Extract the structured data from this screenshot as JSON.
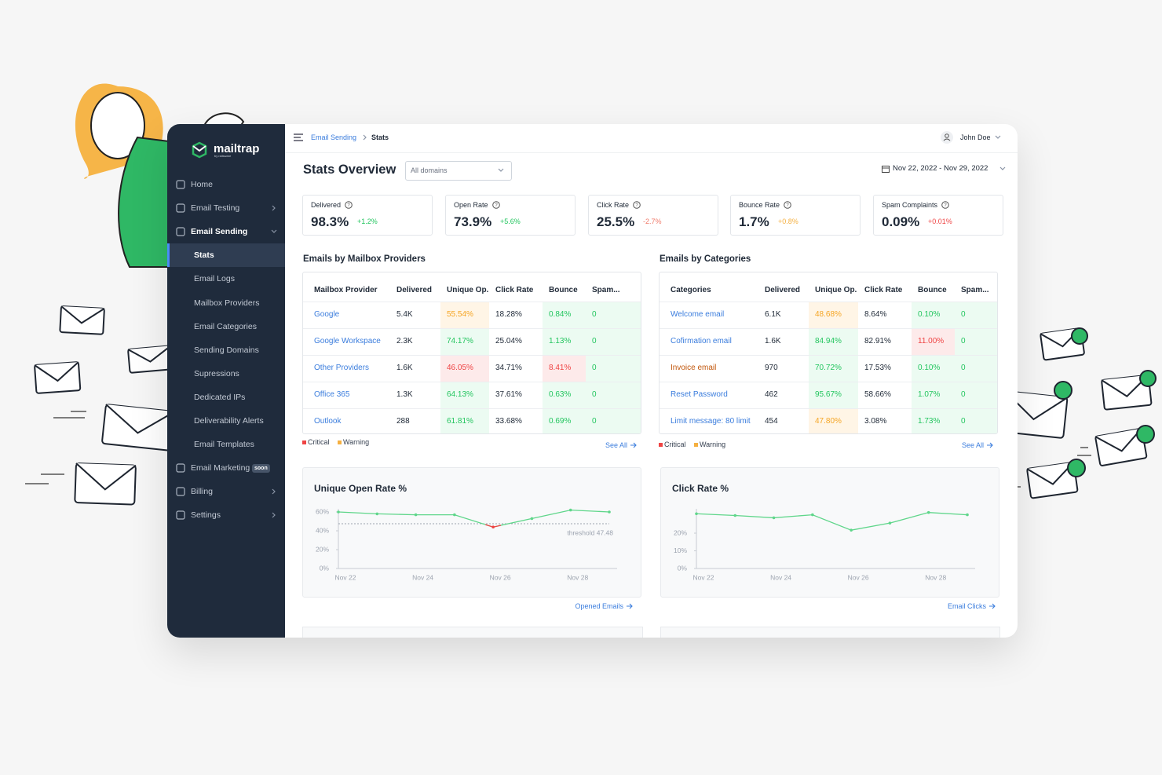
{
  "sidebar": {
    "brand": "mailtrap",
    "brand_sub": "by railsware",
    "nav": [
      {
        "label": "Home"
      },
      {
        "label": "Email Testing",
        "chevron": "right"
      },
      {
        "label": "Email Sending",
        "chevron": "down",
        "open": true
      },
      {
        "label": "Stats",
        "sub": true,
        "active": true
      },
      {
        "label": "Email Logs",
        "sub": true
      },
      {
        "label": "Mailbox Providers",
        "sub": true
      },
      {
        "label": "Email Categories",
        "sub": true
      },
      {
        "label": "Sending Domains",
        "sub": true
      },
      {
        "label": "Supressions",
        "sub": true
      },
      {
        "label": "Dedicated IPs",
        "sub": true
      },
      {
        "label": "Deliverability Alerts",
        "sub": true
      },
      {
        "label": "Email Templates",
        "sub": true
      },
      {
        "label": "Email Marketing",
        "badge": "soon"
      },
      {
        "label": "Billing",
        "chevron": "right"
      },
      {
        "label": "Settings",
        "chevron": "right"
      }
    ]
  },
  "topbar": {
    "breadcrumb": [
      "Email Sending",
      "Stats"
    ],
    "user": "John Doe"
  },
  "header": {
    "title": "Stats Overview",
    "domain_select": "All domains",
    "date_range": "Nov 22, 2022 - Nov 29, 2022"
  },
  "kpis": [
    {
      "label": "Delivered",
      "value": "98.3%",
      "delta": "+1.2%",
      "delta_color": "#22c55e"
    },
    {
      "label": "Open Rate",
      "value": "73.9%",
      "delta": "+5.6%",
      "delta_color": "#22c55e"
    },
    {
      "label": "Click Rate",
      "value": "25.5%",
      "delta": "-2.7%",
      "delta_color": "#f07a6a"
    },
    {
      "label": "Bounce Rate",
      "value": "1.7%",
      "delta": "+0.8%",
      "delta_color": "#f5b041"
    },
    {
      "label": "Spam Complaints",
      "value": "0.09%",
      "delta": "+0.01%",
      "delta_color": "#ef4444"
    }
  ],
  "tables": [
    {
      "title": "Emails by Mailbox Providers",
      "columns": [
        "Mailbox Provider",
        "Delivered",
        "Unique Op.",
        "Click Rate",
        "Bounce",
        "Spam..."
      ],
      "rows": [
        [
          {
            "text": "Google",
            "link": true
          },
          "5.4K",
          {
            "text": "55.54%",
            "status": "warning"
          },
          "18.28%",
          {
            "text": "0.84%",
            "status": "ok"
          },
          {
            "text": "0",
            "status": "ok"
          }
        ],
        [
          {
            "text": "Google Workspace",
            "link": true
          },
          "2.3K",
          {
            "text": "74.17%",
            "status": "ok"
          },
          "25.04%",
          {
            "text": "1.13%",
            "status": "ok"
          },
          {
            "text": "0",
            "status": "ok"
          }
        ],
        [
          {
            "text": "Other Providers",
            "link": true
          },
          "1.6K",
          {
            "text": "46.05%",
            "status": "critical"
          },
          "34.71%",
          {
            "text": "8.41%",
            "status": "critical"
          },
          {
            "text": "0",
            "status": "ok"
          }
        ],
        [
          {
            "text": "Office 365",
            "link": true
          },
          "1.3K",
          {
            "text": "64.13%",
            "status": "ok"
          },
          "37.61%",
          {
            "text": "0.63%",
            "status": "ok"
          },
          {
            "text": "0",
            "status": "ok"
          }
        ],
        [
          {
            "text": "Outlook",
            "link": true
          },
          "288",
          {
            "text": "61.81%",
            "status": "ok"
          },
          "33.68%",
          {
            "text": "0.69%",
            "status": "ok"
          },
          {
            "text": "0",
            "status": "ok"
          }
        ]
      ],
      "legend": [
        "Critical",
        "Warning"
      ],
      "see_all": "See All"
    },
    {
      "title": "Emails by Categories",
      "columns": [
        "Categories",
        "Delivered",
        "Unique Op.",
        "Click Rate",
        "Bounce",
        "Spam..."
      ],
      "rows": [
        [
          {
            "text": "Welcome email",
            "link": true
          },
          "6.1K",
          {
            "text": "48.68%",
            "status": "warning"
          },
          "8.64%",
          {
            "text": "0.10%",
            "status": "ok"
          },
          {
            "text": "0",
            "status": "ok"
          }
        ],
        [
          {
            "text": "Cofirmation email",
            "link": true
          },
          "1.6K",
          {
            "text": "84.94%",
            "status": "ok"
          },
          "82.91%",
          {
            "text": "11.00%",
            "status": "critical"
          },
          {
            "text": "0",
            "status": "ok"
          }
        ],
        [
          {
            "text": "Invoice email",
            "link": true,
            "status": "warning"
          },
          "970",
          {
            "text": "70.72%",
            "status": "ok"
          },
          "17.53%",
          {
            "text": "0.10%",
            "status": "ok"
          },
          {
            "text": "0",
            "status": "ok"
          }
        ],
        [
          {
            "text": "Reset Password",
            "link": true
          },
          "462",
          {
            "text": "95.67%",
            "status": "ok"
          },
          "58.66%",
          {
            "text": "1.07%",
            "status": "ok"
          },
          {
            "text": "0",
            "status": "ok"
          }
        ],
        [
          {
            "text": "Limit message: 80 limit",
            "link": true
          },
          "454",
          {
            "text": "47.80%",
            "status": "warning"
          },
          "3.08%",
          {
            "text": "1.73%",
            "status": "ok"
          },
          {
            "text": "0",
            "status": "ok"
          }
        ]
      ],
      "legend": [
        "Critical",
        "Warning"
      ],
      "see_all": "See All"
    }
  ],
  "chart_data": [
    {
      "type": "line",
      "title": "Unique Open Rate %",
      "categories": [
        "Nov 22",
        null,
        "Nov 24",
        null,
        "Nov 26",
        null,
        "Nov 28",
        null
      ],
      "series": [
        {
          "name": "Unique Open Rate",
          "color": "#5fd68a",
          "values": [
            60,
            58,
            57,
            57,
            44,
            53,
            62,
            60
          ]
        }
      ],
      "ylim": [
        0,
        60
      ],
      "yticks": [
        {
          "value": 0,
          "label": "0%"
        },
        {
          "value": 20,
          "label": "20%"
        },
        {
          "value": 40,
          "label": "40%"
        },
        {
          "value": 60,
          "label": "60%"
        }
      ],
      "threshold": {
        "value": 47.48,
        "label": "threshold 47.48",
        "below_color": "#ef4444"
      },
      "grid": false,
      "footer_link": "Opened Emails"
    },
    {
      "type": "line",
      "title": "Click Rate %",
      "categories": [
        "Nov 22",
        null,
        "Nov 24",
        null,
        "Nov 26",
        null,
        "Nov 28",
        null
      ],
      "series": [
        {
          "name": "Click Rate",
          "color": "#5fd68a",
          "values": [
            31,
            30,
            28.7,
            30.4,
            21.7,
            25.7,
            31.7,
            30.4
          ]
        }
      ],
      "ylim": [
        0,
        32
      ],
      "yticks": [
        {
          "value": 0,
          "label": "0%"
        },
        {
          "value": 10,
          "label": "10%"
        },
        {
          "value": 20,
          "label": "20%"
        }
      ],
      "grid": false,
      "footer_link": "Email Clicks"
    }
  ]
}
